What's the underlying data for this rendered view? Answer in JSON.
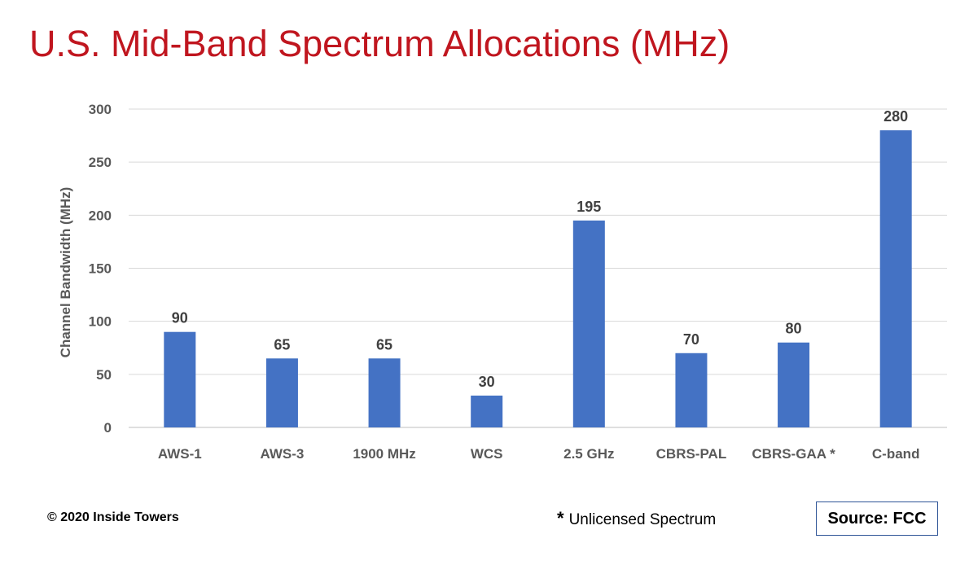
{
  "title": "U.S. Mid-Band Spectrum Allocations (MHz)",
  "chart_data": {
    "type": "bar",
    "categories": [
      "AWS-1",
      "AWS-3",
      "1900 MHz",
      "WCS",
      "2.5 GHz",
      "CBRS-PAL",
      "CBRS-GAA *",
      "C-band"
    ],
    "values": [
      90,
      65,
      65,
      30,
      195,
      70,
      80,
      280
    ],
    "ylabel": "Channel Bandwidth (MHz)",
    "xlabel": "",
    "ylim": [
      0,
      300
    ],
    "yticks": [
      0,
      50,
      100,
      150,
      200,
      250,
      300
    ],
    "grid": true,
    "bar_color": "#4472c4",
    "data_labels": true
  },
  "footer": {
    "copyright": "© 2020 Inside Towers",
    "footnote_symbol": "*",
    "footnote_text": "Unlicensed Spectrum",
    "source": "Source: FCC"
  }
}
